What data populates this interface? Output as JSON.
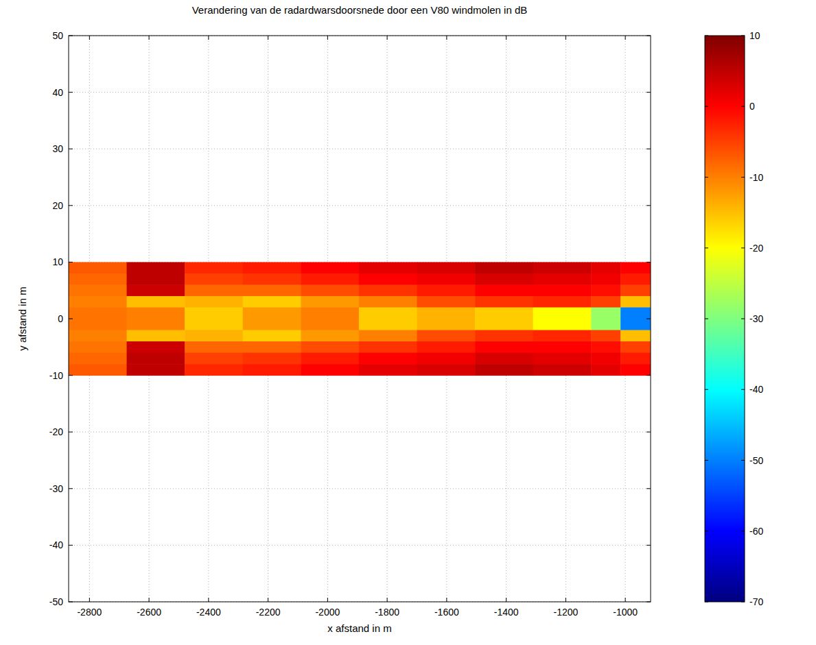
{
  "chart_data": {
    "type": "heatmap",
    "title": "Verandering van de radardwarsdoorsnede door een V80 windmolen in dB",
    "x_label": "x afstand in m",
    "y_label": "y afstand in m",
    "xlim": [
      -2870,
      -915
    ],
    "ylim": [
      -50,
      50
    ],
    "xticks": [
      -2800,
      -2600,
      -2400,
      -2200,
      -2000,
      -1800,
      -1600,
      -1400,
      -1200,
      -1000
    ],
    "yticks": [
      -50,
      -40,
      -30,
      -20,
      -10,
      0,
      10,
      20,
      30,
      40,
      50
    ],
    "grid": true,
    "x_edges": [
      -2870,
      -2675,
      -2480,
      -2285,
      -2090,
      -1895,
      -1700,
      -1505,
      -1310,
      -1115,
      -1016,
      -915
    ],
    "y_edges": [
      10,
      8,
      6,
      4,
      2,
      0,
      -2,
      -4,
      -6,
      -8,
      -10
    ],
    "values": [
      [
        -7,
        -8,
        -9,
        -10,
        -9,
        -9,
        -10,
        -9,
        -8,
        -7
      ],
      [
        5,
        5,
        4,
        -15,
        -10,
        -10,
        -15,
        4,
        5,
        5
      ],
      [
        -3,
        -5,
        -8,
        -14,
        -16,
        -16,
        -14,
        -8,
        -5,
        -3
      ],
      [
        -2,
        -4,
        -8,
        -16,
        -12,
        -12,
        -16,
        -8,
        -4,
        -2
      ],
      [
        0,
        -2,
        -6,
        -12,
        -10,
        -10,
        -12,
        -6,
        -2,
        0
      ],
      [
        2,
        0,
        -4,
        -10,
        -16,
        -16,
        -10,
        -4,
        0,
        2
      ],
      [
        3,
        1,
        -2,
        -6,
        -14,
        -14,
        -6,
        -2,
        1,
        3
      ],
      [
        5,
        3,
        0,
        -4,
        -16,
        -16,
        -4,
        0,
        3,
        5
      ],
      [
        4,
        2,
        0,
        -3,
        -20,
        -20,
        -3,
        0,
        2,
        4
      ],
      [
        2,
        1,
        -1,
        -5,
        -28,
        -28,
        -5,
        -1,
        1,
        2
      ],
      [
        0,
        -2,
        -5,
        -15,
        -50,
        -50,
        -15,
        -5,
        -2,
        0
      ]
    ],
    "colorbar": {
      "range": [
        -70,
        10
      ],
      "ticks": [
        -70,
        -60,
        -50,
        -40,
        -30,
        -20,
        -10,
        0,
        10
      ]
    }
  }
}
